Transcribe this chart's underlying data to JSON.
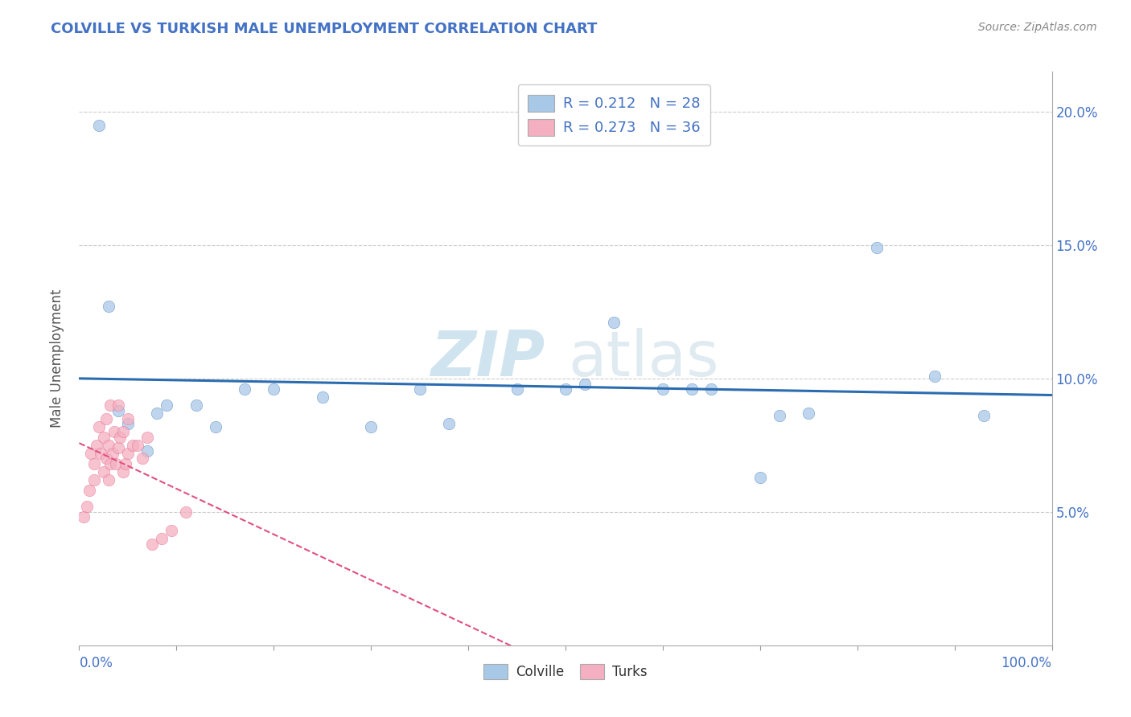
{
  "title": "COLVILLE VS TURKISH MALE UNEMPLOYMENT CORRELATION CHART",
  "source": "Source: ZipAtlas.com",
  "ylabel": "Male Unemployment",
  "legend_colville": "Colville",
  "legend_turks": "Turks",
  "legend_r_colville": "R = 0.212",
  "legend_n_colville": "N = 28",
  "legend_r_turks": "R = 0.273",
  "legend_n_turks": "N = 36",
  "yticks": [
    0.05,
    0.1,
    0.15,
    0.2
  ],
  "ytick_labels": [
    "5.0%",
    "10.0%",
    "15.0%",
    "20.0%"
  ],
  "colville_color": "#a8c8e8",
  "turks_color": "#f4afc0",
  "trendline_colville_color": "#2b6cb0",
  "trendline_turks_color": "#e05080",
  "background_color": "#ffffff",
  "colville_x": [
    0.02,
    0.03,
    0.04,
    0.05,
    0.07,
    0.08,
    0.09,
    0.12,
    0.14,
    0.17,
    0.2,
    0.25,
    0.3,
    0.35,
    0.38,
    0.45,
    0.5,
    0.52,
    0.55,
    0.6,
    0.63,
    0.65,
    0.7,
    0.72,
    0.75,
    0.82,
    0.88,
    0.93
  ],
  "colville_y": [
    0.195,
    0.127,
    0.088,
    0.083,
    0.073,
    0.087,
    0.09,
    0.09,
    0.082,
    0.096,
    0.096,
    0.093,
    0.082,
    0.096,
    0.083,
    0.096,
    0.096,
    0.098,
    0.121,
    0.096,
    0.096,
    0.096,
    0.063,
    0.086,
    0.087,
    0.149,
    0.101,
    0.086
  ],
  "turks_x": [
    0.005,
    0.008,
    0.01,
    0.012,
    0.015,
    0.015,
    0.018,
    0.02,
    0.022,
    0.025,
    0.025,
    0.028,
    0.028,
    0.03,
    0.03,
    0.032,
    0.032,
    0.034,
    0.036,
    0.038,
    0.04,
    0.04,
    0.042,
    0.045,
    0.045,
    0.048,
    0.05,
    0.05,
    0.055,
    0.06,
    0.065,
    0.07,
    0.075,
    0.085,
    0.095,
    0.11
  ],
  "turks_y": [
    0.048,
    0.052,
    0.058,
    0.072,
    0.062,
    0.068,
    0.075,
    0.082,
    0.072,
    0.065,
    0.078,
    0.07,
    0.085,
    0.062,
    0.075,
    0.068,
    0.09,
    0.072,
    0.08,
    0.068,
    0.074,
    0.09,
    0.078,
    0.065,
    0.08,
    0.068,
    0.072,
    0.085,
    0.075,
    0.075,
    0.07,
    0.078,
    0.038,
    0.04,
    0.043,
    0.05
  ]
}
